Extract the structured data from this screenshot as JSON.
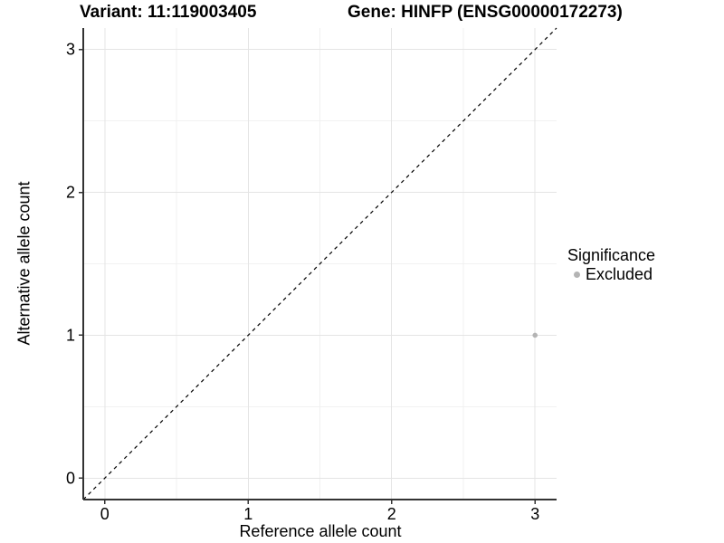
{
  "titles": {
    "variant": "Variant: 11:119003405",
    "gene": "Gene: HINFP (ENSG00000172273)"
  },
  "legend": {
    "title": "Significance",
    "items": [
      {
        "label": "Excluded",
        "color": "#b4b4b4",
        "marker": "circle-icon"
      }
    ]
  },
  "chart_data": {
    "type": "scatter",
    "title": "Variant: 11:119003405 | Gene: HINFP (ENSG00000172273)",
    "xlabel": "Reference allele count",
    "ylabel": "Alternative allele count",
    "xticks": [
      0,
      1,
      2,
      3
    ],
    "yticks": [
      0,
      1,
      2,
      3
    ],
    "xlim": [
      -0.15,
      3.15
    ],
    "ylim": [
      -0.15,
      3.15
    ],
    "grid": "major+minor",
    "legend_position": "right",
    "series": [
      {
        "name": "Excluded",
        "color": "#b4b4b4",
        "points": [
          {
            "x": 3,
            "y": 1
          }
        ]
      }
    ],
    "reference_line": {
      "kind": "identity",
      "from": [
        -0.15,
        -0.15
      ],
      "to": [
        3.15,
        3.15
      ],
      "style": "dashed",
      "color": "#000000"
    }
  },
  "style": {
    "background": "#ffffff",
    "grid_major": "#e4e4e4",
    "grid_minor": "#f1f1f1",
    "axis_line": "#333333",
    "tick_color": "#333333",
    "text_color": "#000000",
    "point_color": "#b4b4b4"
  }
}
